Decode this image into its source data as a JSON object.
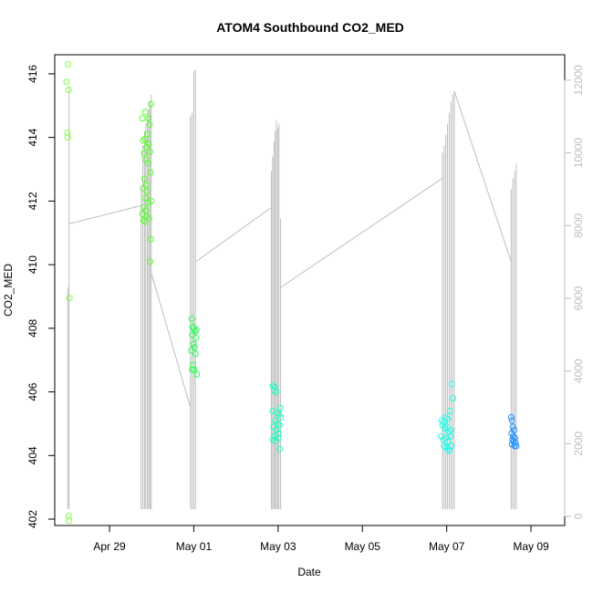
{
  "chart_data": {
    "type": "scatter",
    "title": "ATOM4 Southbound CO2_MED",
    "xlabel": "Date",
    "ylabel": "CO2_MED",
    "x_range_days": [
      -1.3,
      10.8
    ],
    "xlim_dates": [
      "Apr 27 17:00",
      "May 09 19:00"
    ],
    "x_ticks": [
      {
        "label": "Apr 29",
        "day": 0
      },
      {
        "label": "May 01",
        "day": 2
      },
      {
        "label": "May 03",
        "day": 4
      },
      {
        "label": "May 05",
        "day": 6
      },
      {
        "label": "May 07",
        "day": 8
      },
      {
        "label": "May 09",
        "day": 10
      }
    ],
    "ylim": [
      401.8,
      416.6
    ],
    "y_ticks": [
      402,
      404,
      406,
      408,
      410,
      412,
      414,
      416
    ],
    "right_axis": {
      "color": "#bebebe",
      "ylim": [
        -250,
        12700
      ],
      "ticks": [
        0,
        2000,
        4000,
        6000,
        8000,
        10000,
        12000
      ]
    },
    "series": [
      {
        "marker": "open-circle",
        "colors": {
          "apr28": "#80ff40",
          "apr30": "#55ff2a",
          "may02": "#2aff55",
          "may04": "#1effc0",
          "may07": "#19ffe8",
          "may09": "#1e90ff"
        },
        "points": [
          [
            -0.98,
            416.3,
            "apr28"
          ],
          [
            -1.02,
            415.75,
            "apr28"
          ],
          [
            -0.97,
            415.5,
            "apr28"
          ],
          [
            -1.0,
            414.15,
            "apr28"
          ],
          [
            -0.99,
            414.0,
            "apr28"
          ],
          [
            -0.95,
            408.95,
            "apr28"
          ],
          [
            -0.97,
            402.1,
            "apr28"
          ],
          [
            -0.96,
            401.95,
            "apr28"
          ],
          [
            0.78,
            414.6,
            "apr30"
          ],
          [
            0.85,
            414.8,
            "apr30"
          ],
          [
            0.92,
            414.6,
            "apr30"
          ],
          [
            0.95,
            414.4,
            "apr30"
          ],
          [
            0.98,
            415.05,
            "apr30"
          ],
          [
            0.8,
            413.9,
            "apr30"
          ],
          [
            0.84,
            413.95,
            "apr30"
          ],
          [
            0.9,
            414.1,
            "apr30"
          ],
          [
            0.93,
            413.8,
            "apr30"
          ],
          [
            0.88,
            413.7,
            "apr30"
          ],
          [
            0.96,
            413.55,
            "apr30"
          ],
          [
            0.82,
            413.5,
            "apr30"
          ],
          [
            0.86,
            413.3,
            "apr30"
          ],
          [
            0.91,
            413.2,
            "apr30"
          ],
          [
            0.97,
            412.9,
            "apr30"
          ],
          [
            0.83,
            412.7,
            "apr30"
          ],
          [
            0.87,
            412.5,
            "apr30"
          ],
          [
            0.8,
            412.4,
            "apr30"
          ],
          [
            0.89,
            412.3,
            "apr30"
          ],
          [
            0.85,
            412.1,
            "apr30"
          ],
          [
            0.92,
            411.95,
            "apr30"
          ],
          [
            0.99,
            412.0,
            "apr30"
          ],
          [
            0.81,
            411.8,
            "apr30"
          ],
          [
            0.78,
            411.6,
            "apr30"
          ],
          [
            0.86,
            411.7,
            "apr30"
          ],
          [
            0.88,
            411.5,
            "apr30"
          ],
          [
            0.8,
            411.4,
            "apr30"
          ],
          [
            0.84,
            411.35,
            "apr30"
          ],
          [
            0.94,
            411.45,
            "apr30"
          ],
          [
            0.98,
            410.8,
            "apr30"
          ],
          [
            0.96,
            410.1,
            "apr30"
          ],
          [
            1.95,
            408.3,
            "may02"
          ],
          [
            1.97,
            408.05,
            "may02"
          ],
          [
            2.0,
            408.0,
            "may02"
          ],
          [
            2.03,
            407.9,
            "may02"
          ],
          [
            2.06,
            407.95,
            "may02"
          ],
          [
            1.96,
            407.8,
            "may02"
          ],
          [
            2.05,
            407.7,
            "may02"
          ],
          [
            1.99,
            407.5,
            "may02"
          ],
          [
            2.02,
            407.4,
            "may02"
          ],
          [
            1.94,
            407.3,
            "may02"
          ],
          [
            2.04,
            407.2,
            "may02"
          ],
          [
            1.98,
            406.85,
            "may02"
          ],
          [
            2.01,
            406.7,
            "may02"
          ],
          [
            1.96,
            406.7,
            "may02"
          ],
          [
            2.07,
            406.55,
            "may02"
          ],
          [
            3.88,
            406.2,
            "may04"
          ],
          [
            3.92,
            406.15,
            "may04"
          ],
          [
            3.95,
            406.0,
            "may04"
          ],
          [
            3.9,
            406.05,
            "may04"
          ],
          [
            4.05,
            405.5,
            "may04"
          ],
          [
            3.87,
            405.4,
            "may04"
          ],
          [
            3.98,
            405.35,
            "may04"
          ],
          [
            4.02,
            405.3,
            "may04"
          ],
          [
            4.06,
            405.2,
            "may04"
          ],
          [
            3.93,
            405.1,
            "may04"
          ],
          [
            3.99,
            405.0,
            "may04"
          ],
          [
            4.03,
            404.95,
            "may04"
          ],
          [
            3.89,
            404.9,
            "may04"
          ],
          [
            3.96,
            404.8,
            "may04"
          ],
          [
            4.01,
            404.7,
            "may04"
          ],
          [
            3.91,
            404.6,
            "may04"
          ],
          [
            3.87,
            404.5,
            "may04"
          ],
          [
            3.94,
            404.45,
            "may04"
          ],
          [
            4.0,
            404.55,
            "may04"
          ],
          [
            4.04,
            404.2,
            "may04"
          ],
          [
            7.88,
            405.1,
            "may07"
          ],
          [
            7.93,
            405.05,
            "may07"
          ],
          [
            7.97,
            405.2,
            "may07"
          ],
          [
            8.02,
            405.15,
            "may07"
          ],
          [
            8.08,
            405.4,
            "may07"
          ],
          [
            8.15,
            405.8,
            "may07"
          ],
          [
            8.12,
            406.25,
            "may07"
          ],
          [
            7.9,
            404.95,
            "may07"
          ],
          [
            7.95,
            404.85,
            "may07"
          ],
          [
            8.0,
            404.9,
            "may07"
          ],
          [
            8.05,
            404.75,
            "may07"
          ],
          [
            8.1,
            404.8,
            "may07"
          ],
          [
            7.87,
            404.6,
            "may07"
          ],
          [
            7.92,
            404.5,
            "may07"
          ],
          [
            7.98,
            404.55,
            "may07"
          ],
          [
            8.03,
            404.45,
            "may07"
          ],
          [
            8.09,
            404.6,
            "may07"
          ],
          [
            7.94,
            404.3,
            "may07"
          ],
          [
            8.0,
            404.25,
            "may07"
          ],
          [
            8.06,
            404.2,
            "may07"
          ],
          [
            8.11,
            404.3,
            "may07"
          ],
          [
            8.04,
            404.15,
            "may07"
          ],
          [
            9.53,
            405.2,
            "may09"
          ],
          [
            9.55,
            405.1,
            "may09"
          ],
          [
            9.57,
            404.9,
            "may09"
          ],
          [
            9.6,
            404.8,
            "may09"
          ],
          [
            9.54,
            404.7,
            "may09"
          ],
          [
            9.58,
            404.6,
            "may09"
          ],
          [
            9.62,
            404.55,
            "may09"
          ],
          [
            9.56,
            404.5,
            "may09"
          ],
          [
            9.59,
            404.45,
            "may09"
          ],
          [
            9.63,
            404.4,
            "may09"
          ],
          [
            9.55,
            404.35,
            "may09"
          ],
          [
            9.61,
            404.3,
            "may09"
          ],
          [
            9.65,
            404.3,
            "may09"
          ]
        ]
      },
      {
        "axis": "right",
        "color": "#bebebe",
        "type": "line",
        "spikes": [
          {
            "day": -0.99,
            "max": 6300
          },
          {
            "day": -0.96,
            "max": 11800
          },
          {
            "day": 0.75,
            "max": 9100
          },
          {
            "day": 0.79,
            "max": 10200
          },
          {
            "day": 0.83,
            "max": 10600
          },
          {
            "day": 0.86,
            "max": 10800
          },
          {
            "day": 0.9,
            "max": 11000
          },
          {
            "day": 0.93,
            "max": 11200
          },
          {
            "day": 0.96,
            "max": 11400
          },
          {
            "day": 0.99,
            "max": 11600
          },
          {
            "day": 1.92,
            "max": 11000
          },
          {
            "day": 1.96,
            "max": 11100
          },
          {
            "day": 2.0,
            "max": 12250
          },
          {
            "day": 2.04,
            "max": 12300
          },
          {
            "day": 3.84,
            "max": 9500
          },
          {
            "day": 3.87,
            "max": 9900
          },
          {
            "day": 3.9,
            "max": 10300
          },
          {
            "day": 3.93,
            "max": 10600
          },
          {
            "day": 3.96,
            "max": 10900
          },
          {
            "day": 3.99,
            "max": 10700
          },
          {
            "day": 4.02,
            "max": 10800
          },
          {
            "day": 4.06,
            "max": 8200
          },
          {
            "day": 7.9,
            "max": 10000
          },
          {
            "day": 7.94,
            "max": 10200
          },
          {
            "day": 7.98,
            "max": 10500
          },
          {
            "day": 8.02,
            "max": 10800
          },
          {
            "day": 8.06,
            "max": 11100
          },
          {
            "day": 8.1,
            "max": 11400
          },
          {
            "day": 8.14,
            "max": 11600
          },
          {
            "day": 8.18,
            "max": 11700
          },
          {
            "day": 9.53,
            "max": 9000
          },
          {
            "day": 9.57,
            "max": 9300
          },
          {
            "day": 9.61,
            "max": 9500
          },
          {
            "day": 9.65,
            "max": 9700
          }
        ],
        "spike_min": 200,
        "connectors": [
          [
            [
              -0.95,
              8050
            ],
            [
              0.75,
              8550
            ]
          ],
          [
            [
              0.99,
              6700
            ],
            [
              1.92,
              3000
            ]
          ],
          [
            [
              2.04,
              7000
            ],
            [
              3.84,
              8500
            ]
          ],
          [
            [
              4.06,
              6300
            ],
            [
              7.9,
              9300
            ]
          ],
          [
            [
              8.18,
              11700
            ],
            [
              9.53,
              7000
            ]
          ]
        ]
      }
    ]
  }
}
